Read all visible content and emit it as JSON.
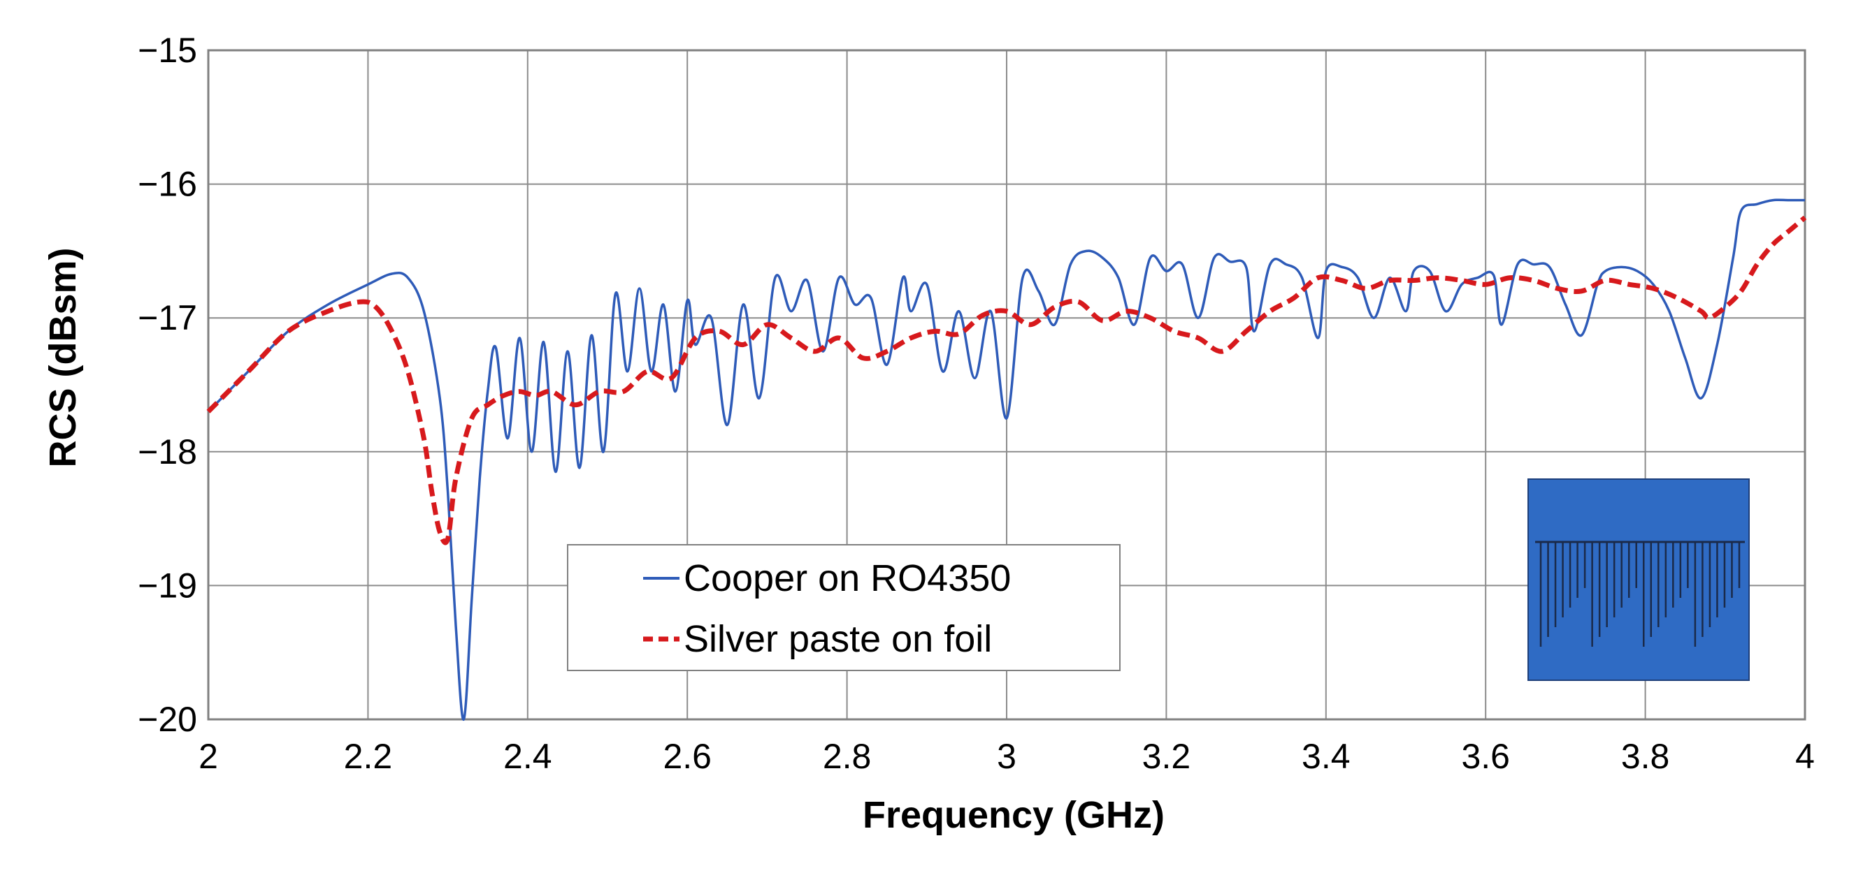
{
  "chart_data": {
    "type": "line",
    "title": "",
    "xlabel": "Frequency (GHz)",
    "ylabel": "RCS (dBsm)",
    "xlim": [
      2,
      4
    ],
    "ylim": [
      -20,
      -15
    ],
    "x_ticks": [
      2,
      2.2,
      2.4,
      2.6,
      2.8,
      3,
      3.2,
      3.4,
      3.6,
      3.8,
      4
    ],
    "x_tick_labels": [
      "2",
      "2.2",
      "2.4",
      "2.6",
      "2.8",
      "3",
      "3.2",
      "3.4",
      "3.6",
      "3.8",
      "4"
    ],
    "y_ticks": [
      -20,
      -19,
      -18,
      -17,
      -16,
      -15
    ],
    "y_tick_labels": [
      "−20",
      "−19",
      "−18",
      "−17",
      "−16",
      "−15"
    ],
    "grid": true,
    "legend": {
      "placement": "bottom-center"
    },
    "inset": {
      "description": ""
    },
    "series": [
      {
        "name": "Cooper on RO4350",
        "color": "#2E5BB8",
        "dash": "solid",
        "x": [
          2.0,
          2.05,
          2.1,
          2.15,
          2.2,
          2.23,
          2.25,
          2.27,
          2.29,
          2.3,
          2.31,
          2.32,
          2.33,
          2.34,
          2.35,
          2.36,
          2.375,
          2.39,
          2.405,
          2.42,
          2.435,
          2.45,
          2.465,
          2.48,
          2.495,
          2.51,
          2.525,
          2.54,
          2.555,
          2.57,
          2.585,
          2.6,
          2.61,
          2.63,
          2.65,
          2.67,
          2.69,
          2.71,
          2.73,
          2.75,
          2.77,
          2.79,
          2.81,
          2.83,
          2.85,
          2.87,
          2.88,
          2.9,
          2.92,
          2.94,
          2.96,
          2.98,
          3.0,
          3.02,
          3.04,
          3.06,
          3.08,
          3.1,
          3.12,
          3.14,
          3.16,
          3.18,
          3.2,
          3.22,
          3.24,
          3.26,
          3.28,
          3.3,
          3.31,
          3.33,
          3.35,
          3.37,
          3.39,
          3.4,
          3.42,
          3.44,
          3.46,
          3.48,
          3.5,
          3.51,
          3.53,
          3.55,
          3.57,
          3.59,
          3.61,
          3.62,
          3.64,
          3.66,
          3.68,
          3.7,
          3.72,
          3.74,
          3.75,
          3.77,
          3.79,
          3.81,
          3.83,
          3.85,
          3.87,
          3.89,
          3.91,
          3.92,
          3.94,
          3.96,
          3.98,
          4.0
        ],
        "y": [
          -17.7,
          -17.4,
          -17.1,
          -16.9,
          -16.75,
          -16.67,
          -16.7,
          -16.95,
          -17.6,
          -18.3,
          -19.3,
          -20.0,
          -19.1,
          -18.2,
          -17.55,
          -17.22,
          -17.9,
          -17.15,
          -18.0,
          -17.18,
          -18.15,
          -17.25,
          -18.12,
          -17.13,
          -18.0,
          -16.82,
          -17.4,
          -16.78,
          -17.4,
          -16.9,
          -17.55,
          -16.87,
          -17.2,
          -17.0,
          -17.8,
          -16.9,
          -17.6,
          -16.7,
          -16.95,
          -16.72,
          -17.25,
          -16.7,
          -16.9,
          -16.85,
          -17.35,
          -16.7,
          -16.95,
          -16.75,
          -17.4,
          -16.95,
          -17.45,
          -16.95,
          -17.75,
          -16.7,
          -16.8,
          -17.05,
          -16.6,
          -16.5,
          -16.55,
          -16.7,
          -17.05,
          -16.55,
          -16.65,
          -16.6,
          -17.0,
          -16.55,
          -16.58,
          -16.62,
          -17.1,
          -16.6,
          -16.6,
          -16.7,
          -17.15,
          -16.65,
          -16.62,
          -16.7,
          -17.0,
          -16.7,
          -16.95,
          -16.65,
          -16.65,
          -16.95,
          -16.75,
          -16.7,
          -16.68,
          -17.05,
          -16.6,
          -16.6,
          -16.62,
          -16.9,
          -17.13,
          -16.75,
          -16.65,
          -16.62,
          -16.65,
          -16.75,
          -16.95,
          -17.3,
          -17.6,
          -17.2,
          -16.55,
          -16.2,
          -16.15,
          -16.12,
          -16.12,
          -16.12
        ]
      },
      {
        "name": "Silver paste on foil",
        "color": "#D7191C",
        "dash": "dashed",
        "x": [
          2.0,
          2.05,
          2.1,
          2.15,
          2.19,
          2.21,
          2.23,
          2.25,
          2.27,
          2.28,
          2.29,
          2.3,
          2.31,
          2.33,
          2.35,
          2.37,
          2.39,
          2.41,
          2.43,
          2.46,
          2.49,
          2.52,
          2.55,
          2.58,
          2.61,
          2.64,
          2.67,
          2.7,
          2.73,
          2.76,
          2.79,
          2.82,
          2.85,
          2.88,
          2.91,
          2.94,
          2.97,
          3.0,
          3.03,
          3.06,
          3.09,
          3.12,
          3.15,
          3.18,
          3.21,
          3.24,
          3.27,
          3.3,
          3.33,
          3.36,
          3.39,
          3.42,
          3.45,
          3.48,
          3.51,
          3.54,
          3.57,
          3.6,
          3.63,
          3.66,
          3.69,
          3.72,
          3.75,
          3.78,
          3.81,
          3.84,
          3.87,
          3.88,
          3.9,
          3.92,
          3.94,
          3.96,
          3.98,
          4.0
        ],
        "y": [
          -17.7,
          -17.4,
          -17.1,
          -16.95,
          -16.88,
          -16.92,
          -17.1,
          -17.4,
          -17.9,
          -18.3,
          -18.6,
          -18.65,
          -18.2,
          -17.75,
          -17.65,
          -17.58,
          -17.55,
          -17.58,
          -17.55,
          -17.65,
          -17.55,
          -17.55,
          -17.4,
          -17.45,
          -17.15,
          -17.1,
          -17.2,
          -17.05,
          -17.15,
          -17.25,
          -17.15,
          -17.3,
          -17.25,
          -17.15,
          -17.1,
          -17.12,
          -16.98,
          -16.95,
          -17.05,
          -16.92,
          -16.88,
          -17.02,
          -16.95,
          -17.0,
          -17.1,
          -17.15,
          -17.25,
          -17.1,
          -16.95,
          -16.85,
          -16.7,
          -16.72,
          -16.78,
          -16.72,
          -16.72,
          -16.7,
          -16.72,
          -16.75,
          -16.7,
          -16.72,
          -16.78,
          -16.8,
          -16.72,
          -16.75,
          -16.78,
          -16.85,
          -16.95,
          -17.0,
          -16.92,
          -16.8,
          -16.6,
          -16.45,
          -16.35,
          -16.25
        ]
      }
    ]
  }
}
